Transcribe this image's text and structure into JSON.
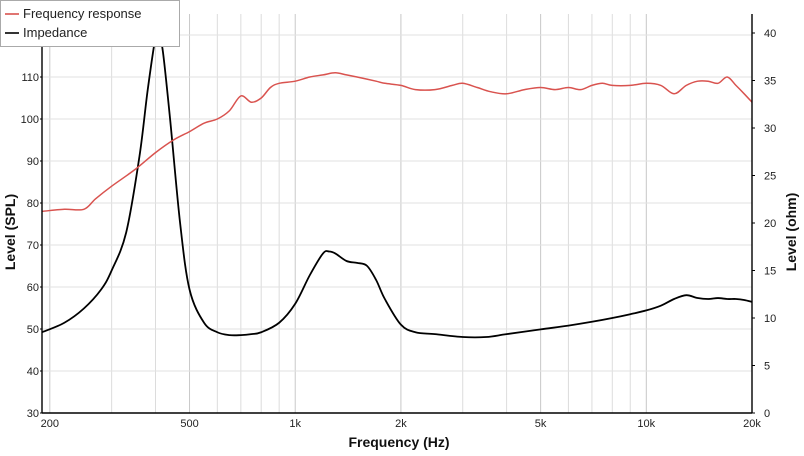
{
  "chart_data": {
    "type": "line",
    "title": "",
    "xlabel": "Frequency (Hz)",
    "ylabel": "Level (SPL)",
    "y2label": "Level (ohm)",
    "x_scale": "log",
    "xlim": [
      190,
      20000
    ],
    "ylim": [
      30,
      125
    ],
    "y2lim": [
      0,
      42
    ],
    "grid": true,
    "legend_position": "top-left",
    "x_ticks": [
      {
        "value": 200,
        "label": "200"
      },
      {
        "value": 500,
        "label": "500"
      },
      {
        "value": 1000,
        "label": "1k"
      },
      {
        "value": 2000,
        "label": "2k"
      },
      {
        "value": 5000,
        "label": "5k"
      },
      {
        "value": 10000,
        "label": "10k"
      },
      {
        "value": 20000,
        "label": "20k"
      }
    ],
    "y_ticks": [
      30,
      40,
      50,
      60,
      70,
      80,
      90,
      100,
      110,
      120
    ],
    "y2_ticks": [
      0,
      5,
      10,
      15,
      20,
      25,
      30,
      35,
      40
    ],
    "series": [
      {
        "name": "Frequency response",
        "axis": "left",
        "color": "#d9534f",
        "x": [
          190,
          220,
          250,
          270,
          300,
          350,
          400,
          450,
          500,
          550,
          600,
          650,
          700,
          750,
          800,
          850,
          900,
          1000,
          1100,
          1200,
          1300,
          1400,
          1500,
          1600,
          1700,
          1800,
          2000,
          2200,
          2500,
          2800,
          3000,
          3300,
          3600,
          4000,
          4500,
          5000,
          5500,
          6000,
          6500,
          7000,
          7500,
          8000,
          9000,
          10000,
          11000,
          12000,
          13000,
          14000,
          15000,
          16000,
          17000,
          18000,
          19000,
          20000
        ],
        "values": [
          78,
          78.5,
          78.5,
          81,
          84,
          88,
          92,
          95,
          97,
          99,
          100,
          102,
          105.5,
          104,
          105,
          107.5,
          108.5,
          109,
          110,
          110.5,
          111,
          110.5,
          110,
          109.5,
          109,
          108.5,
          108,
          107,
          107,
          108,
          108.5,
          107.5,
          106.5,
          106,
          107,
          107.5,
          107,
          107.5,
          107,
          108,
          108.5,
          108,
          108,
          108.5,
          108,
          106,
          108,
          109,
          109,
          108.5,
          110,
          108,
          106,
          104
        ]
      },
      {
        "name": "Impedance",
        "axis": "right",
        "color": "#000000",
        "x": [
          190,
          220,
          250,
          280,
          300,
          330,
          360,
          380,
          400,
          410,
          420,
          440,
          470,
          500,
          550,
          600,
          650,
          700,
          750,
          800,
          900,
          1000,
          1100,
          1200,
          1250,
          1300,
          1400,
          1500,
          1600,
          1700,
          1800,
          2000,
          2200,
          2500,
          3000,
          3500,
          4000,
          5000,
          6000,
          7000,
          8000,
          9000,
          10000,
          11000,
          12000,
          13000,
          14000,
          15000,
          16000,
          17000,
          18000,
          19000,
          20000
        ],
        "values": [
          8.5,
          9.5,
          11,
          13,
          15,
          19,
          27,
          34,
          39.5,
          39.5,
          38,
          31,
          20,
          13,
          9.5,
          8.5,
          8.2,
          8.2,
          8.3,
          8.5,
          9.5,
          11.5,
          14.5,
          16.8,
          17,
          16.8,
          16,
          15.8,
          15.5,
          14,
          12,
          9.3,
          8.5,
          8.3,
          8,
          8,
          8.3,
          8.8,
          9.2,
          9.6,
          10,
          10.4,
          10.8,
          11.3,
          12,
          12.4,
          12.1,
          12,
          12.1,
          12,
          12,
          11.9,
          11.7
        ]
      }
    ]
  }
}
